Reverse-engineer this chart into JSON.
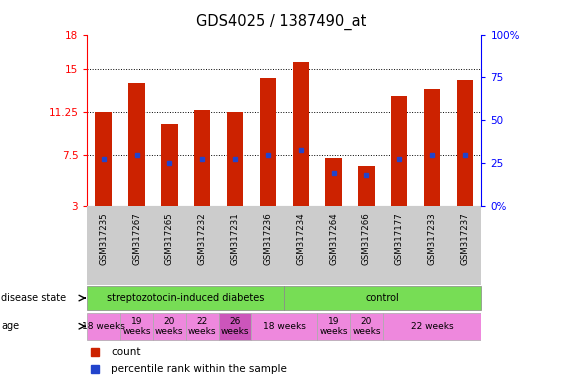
{
  "title": "GDS4025 / 1387490_at",
  "samples": [
    "GSM317235",
    "GSM317267",
    "GSM317265",
    "GSM317232",
    "GSM317231",
    "GSM317236",
    "GSM317234",
    "GSM317264",
    "GSM317266",
    "GSM317177",
    "GSM317233",
    "GSM317237"
  ],
  "bar_heights": [
    11.25,
    13.8,
    10.2,
    11.4,
    11.25,
    14.2,
    15.6,
    7.2,
    6.5,
    12.6,
    13.2,
    14.0
  ],
  "blue_markers": [
    7.1,
    7.5,
    6.8,
    7.1,
    7.1,
    7.5,
    7.9,
    5.9,
    5.7,
    7.1,
    7.5,
    7.5
  ],
  "bar_bottom": 3.0,
  "y_left_ticks": [
    3,
    7.5,
    11.25,
    15,
    18
  ],
  "y_left_labels": [
    "3",
    "7.5",
    "11.25",
    "15",
    "18"
  ],
  "y_right_ticks": [
    0,
    25,
    50,
    75,
    100
  ],
  "y_right_labels": [
    "0%",
    "25",
    "50",
    "75",
    "100%"
  ],
  "y_left_min": 3,
  "y_left_max": 18,
  "grid_lines": [
    7.5,
    11.25,
    15
  ],
  "bar_color": "#CC2200",
  "blue_color": "#2244CC",
  "green_color": "#77DD55",
  "pink_color": "#EE88DD",
  "purple_color": "#CC55BB",
  "gray_color": "#CCCCCC",
  "age_defs": [
    [
      0,
      1,
      "18 weeks",
      "#EE88DD"
    ],
    [
      1,
      2,
      "19\nweeks",
      "#EE88DD"
    ],
    [
      2,
      3,
      "20\nweeks",
      "#EE88DD"
    ],
    [
      3,
      4,
      "22\nweeks",
      "#EE88DD"
    ],
    [
      4,
      5,
      "26\nweeks",
      "#CC55BB"
    ],
    [
      5,
      7,
      "18 weeks",
      "#EE88DD"
    ],
    [
      7,
      8,
      "19\nweeks",
      "#EE88DD"
    ],
    [
      8,
      9,
      "20\nweeks",
      "#EE88DD"
    ],
    [
      9,
      12,
      "22 weeks",
      "#EE88DD"
    ]
  ],
  "disease_defs": [
    [
      0,
      6,
      "streptozotocin-induced diabetes",
      "#77DD55"
    ],
    [
      6,
      12,
      "control",
      "#77DD55"
    ]
  ],
  "xlim": [
    -0.5,
    11.5
  ],
  "n": 12
}
